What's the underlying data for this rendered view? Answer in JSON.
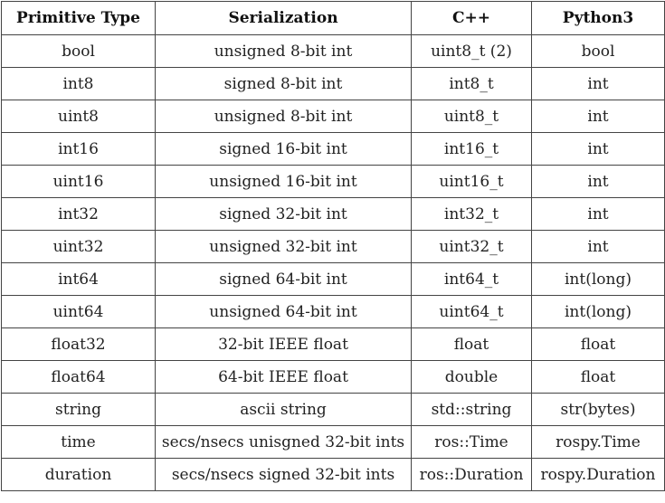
{
  "table": {
    "headers": [
      "Primitive Type",
      "Serialization",
      "C++",
      "Python3"
    ],
    "rows": [
      [
        "bool",
        "unsigned 8-bit int",
        "uint8_t (2)",
        "bool"
      ],
      [
        "int8",
        "signed 8-bit int",
        "int8_t",
        "int"
      ],
      [
        "uint8",
        "unsigned 8-bit int",
        "uint8_t",
        "int"
      ],
      [
        "int16",
        "signed 16-bit int",
        "int16_t",
        "int"
      ],
      [
        "uint16",
        "unsigned 16-bit int",
        "uint16_t",
        "int"
      ],
      [
        "int32",
        "signed 32-bit int",
        "int32_t",
        "int"
      ],
      [
        "uint32",
        "unsigned 32-bit int",
        "uint32_t",
        "int"
      ],
      [
        "int64",
        "signed 64-bit int",
        "int64_t",
        "int(long)"
      ],
      [
        "uint64",
        "unsigned 64-bit int",
        "uint64_t",
        "int(long)"
      ],
      [
        "float32",
        "32-bit IEEE float",
        "float",
        "float"
      ],
      [
        "float64",
        "64-bit IEEE float",
        "double",
        "float"
      ],
      [
        "string",
        "ascii string",
        "std::string",
        "str(bytes)"
      ],
      [
        "time",
        "secs/nsecs unisgned 32-bit ints",
        "ros::Time",
        "rospy.Time"
      ],
      [
        "duration",
        "secs/nsecs signed 32-bit ints",
        "ros::Duration",
        "rospy.Duration"
      ]
    ]
  }
}
